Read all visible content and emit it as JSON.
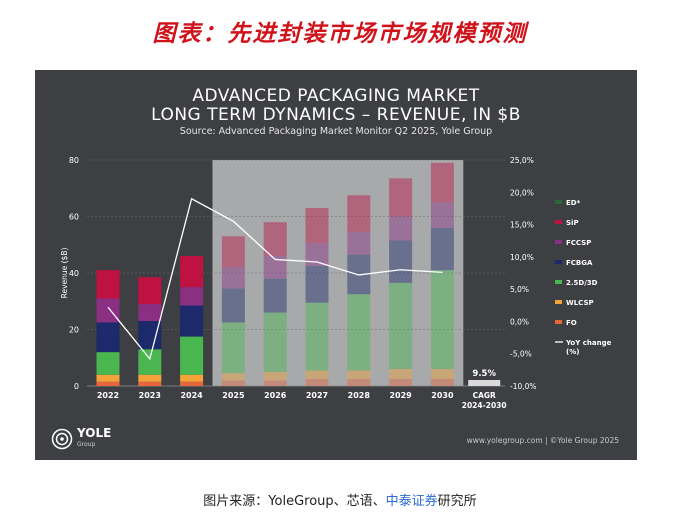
{
  "page_title": "图表：先进封装市场市场规模预测",
  "caption": {
    "prefix": "图片来源：YoleGroup、芯语、",
    "highlight": "中泰证券",
    "suffix": "研究所"
  },
  "logo": {
    "name": "YOLE",
    "sub": "Group"
  },
  "footer_right": "www.yolegroup.com | ©Yole Group 2025",
  "colors": {
    "panel_bg": "#3d3f42",
    "forecast_bg": "#a7a9ab",
    "yoy_line": "#ffffff"
  },
  "chart_data": {
    "type": "bar",
    "stacked": true,
    "title": "ADVANCED PACKAGING MARKET",
    "subtitle": "LONG TERM DYNAMICS – REVENUE, IN $B",
    "source": "Source: Advanced Packaging Market Monitor Q2 2025, Yole Group",
    "ylabel": "Revenue ($B)",
    "ylim": [
      0,
      80
    ],
    "yticks": [
      "0",
      "20",
      "40",
      "60",
      "80"
    ],
    "y2lim": [
      -10,
      25
    ],
    "y2ticks": [
      "-10,0%",
      "-5,0%",
      "0,0%",
      "5,0%",
      "10,0%",
      "15,0%",
      "20,0%",
      "25,0%"
    ],
    "categories": [
      "2022",
      "2023",
      "2024",
      "2025",
      "2026",
      "2027",
      "2028",
      "2029",
      "2030"
    ],
    "forecast_from": "2025",
    "series": [
      {
        "name": "FO",
        "color": "#e8663d",
        "values": [
          1.5,
          1.5,
          1.5,
          2.0,
          2.0,
          2.5,
          2.5,
          2.5,
          2.5
        ]
      },
      {
        "name": "WLCSP",
        "color": "#f4a23a",
        "values": [
          2.5,
          2.5,
          2.5,
          2.5,
          3.0,
          3.0,
          3.0,
          3.5,
          3.5
        ]
      },
      {
        "name": "2.5D/3D",
        "color": "#4ab650",
        "values": [
          8.0,
          9.0,
          13.5,
          18.0,
          21.0,
          24.0,
          27.0,
          30.5,
          35.0
        ]
      },
      {
        "name": "FCBGA",
        "color": "#1c2a6b",
        "values": [
          10.5,
          10.0,
          11.0,
          12.0,
          12.0,
          13.0,
          14.0,
          15.0,
          15.0
        ]
      },
      {
        "name": "FCCSP",
        "color": "#8b2f82",
        "values": [
          8.5,
          6.0,
          6.5,
          7.5,
          8.0,
          8.0,
          8.0,
          8.5,
          9.0
        ]
      },
      {
        "name": "SiP",
        "color": "#bf1142",
        "values": [
          10.0,
          9.5,
          11.0,
          11.0,
          12.0,
          12.5,
          13.0,
          13.5,
          14.0
        ]
      },
      {
        "name": "ED*",
        "color": "#2a6a3a",
        "values": [
          0,
          0,
          0,
          0,
          0,
          0,
          0,
          0,
          0
        ]
      }
    ],
    "yoy": {
      "name": "YoY change (%)",
      "values": [
        2.2,
        -5.8,
        19.0,
        15.5,
        9.6,
        9.2,
        7.2,
        8.0,
        7.6
      ]
    },
    "cagr": {
      "label": "CAGR 2024-2030",
      "value": "9.5%",
      "bar": 9.5
    },
    "legend_position": "right",
    "grid": true
  }
}
